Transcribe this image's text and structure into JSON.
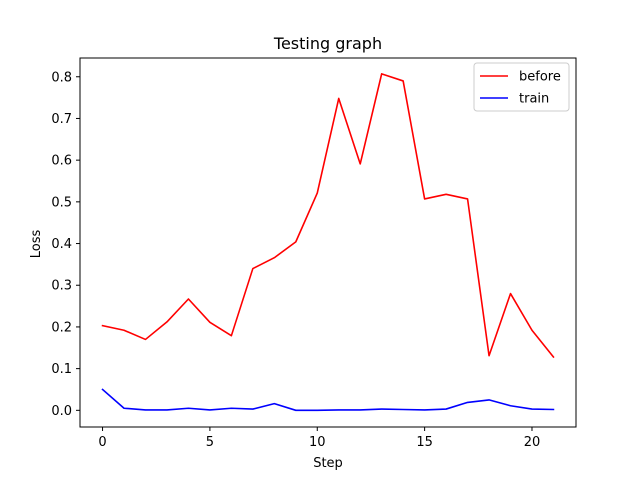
{
  "chart_data": {
    "type": "line",
    "title": "Testing graph",
    "xlabel": "Step",
    "ylabel": "Loss",
    "xlim": [
      -1.05,
      22.05
    ],
    "ylim": [
      -0.04,
      0.845
    ],
    "xticks": [
      0,
      5,
      10,
      15,
      20
    ],
    "yticks": [
      0.0,
      0.1,
      0.2,
      0.3,
      0.4,
      0.5,
      0.6,
      0.7,
      0.8
    ],
    "xtick_labels": [
      "0",
      "5",
      "10",
      "15",
      "20"
    ],
    "ytick_labels": [
      "0.0",
      "0.1",
      "0.2",
      "0.3",
      "0.4",
      "0.5",
      "0.6",
      "0.7",
      "0.8"
    ],
    "grid": false,
    "legend_position": "top-right",
    "x": [
      0,
      1,
      2,
      3,
      4,
      5,
      6,
      7,
      8,
      9,
      10,
      11,
      12,
      13,
      14,
      15,
      16,
      17,
      18,
      19,
      20,
      21
    ],
    "series": [
      {
        "name": "before",
        "color": "#ff0000",
        "values": [
          0.203,
          0.192,
          0.17,
          0.212,
          0.267,
          0.211,
          0.179,
          0.34,
          0.366,
          0.404,
          0.521,
          0.748,
          0.591,
          0.807,
          0.79,
          0.507,
          0.518,
          0.507,
          0.131,
          0.28,
          0.192,
          0.128
        ]
      },
      {
        "name": "train",
        "color": "#0000ff",
        "values": [
          0.05,
          0.005,
          0.001,
          0.001,
          0.005,
          0.001,
          0.005,
          0.003,
          0.016,
          0.0,
          0.0,
          0.001,
          0.001,
          0.003,
          0.002,
          0.001,
          0.003,
          0.019,
          0.025,
          0.011,
          0.003,
          0.002
        ]
      }
    ]
  }
}
